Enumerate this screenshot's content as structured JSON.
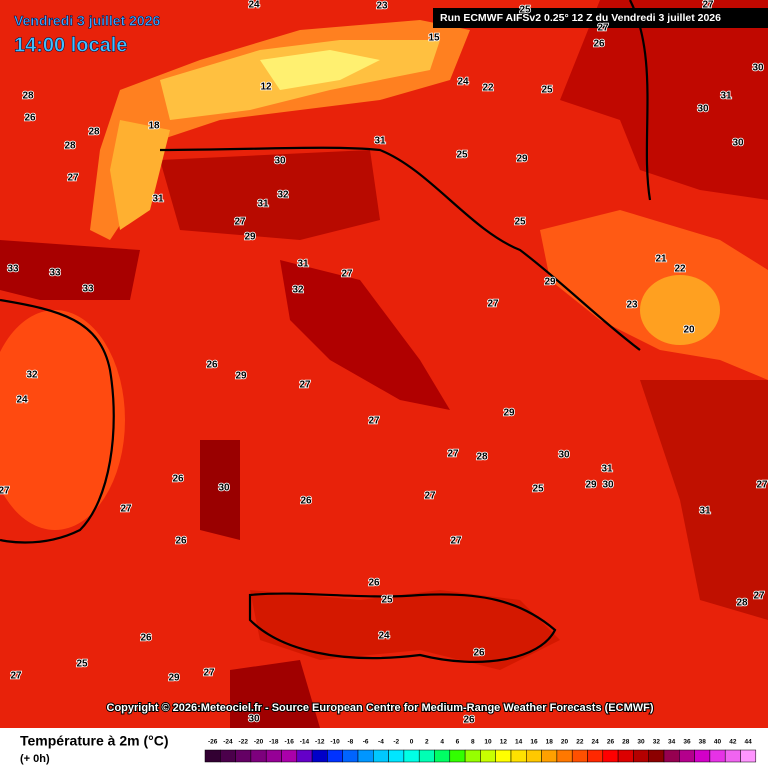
{
  "header": {
    "date": "Vendredi 3 juillet 2026",
    "time": "14:00 locale",
    "run": "Run ECMWF AIFSv2 0.25° 12 Z du Vendredi 3 juillet 2026"
  },
  "copyright": "Copyright © 2026:Meteociel.fr - Source European Centre for Medium-Range Weather Forecasts (ECMWF)",
  "legend": {
    "title": "Température à 2m (°C)",
    "subtitle": "(+ 0h)",
    "ticks": [
      -26,
      -24,
      -22,
      -20,
      -18,
      -16,
      -14,
      -12,
      -10,
      -8,
      -6,
      -4,
      -2,
      0,
      2,
      4,
      6,
      8,
      10,
      12,
      14,
      16,
      18,
      20,
      22,
      24,
      26,
      28,
      30,
      32,
      34,
      36,
      38,
      40,
      42,
      44
    ],
    "colors": [
      "#320032",
      "#4b004b",
      "#640064",
      "#7d007d",
      "#960096",
      "#aa00aa",
      "#6400c8",
      "#0000c8",
      "#0032ff",
      "#0064ff",
      "#0096ff",
      "#00c8ff",
      "#00e6ff",
      "#00ffe6",
      "#00ffb4",
      "#00ff64",
      "#32ff00",
      "#96ff00",
      "#c8ff00",
      "#ffff00",
      "#ffe100",
      "#ffc800",
      "#ffa000",
      "#ff7800",
      "#ff5000",
      "#ff2800",
      "#ff0000",
      "#dc0000",
      "#b40000",
      "#8c0000",
      "#960050",
      "#b4008c",
      "#d200c8",
      "#e632e6",
      "#f064f0",
      "#ff96ff"
    ]
  },
  "map": {
    "labels": [
      28,
      26,
      28,
      28,
      27,
      31,
      30,
      31,
      32,
      31,
      27,
      29,
      31,
      27,
      32,
      33,
      33,
      33,
      27,
      29,
      23,
      21,
      22,
      20,
      31,
      30,
      30,
      30,
      26,
      24,
      22,
      25,
      29,
      25,
      25,
      24,
      27,
      27,
      26,
      26,
      27,
      27,
      25,
      29,
      27,
      28,
      27,
      27,
      29,
      26,
      26,
      26,
      25,
      24,
      26,
      26,
      29,
      25,
      27,
      27,
      28,
      30,
      31,
      29,
      30,
      31,
      27,
      27,
      26,
      30,
      27,
      23,
      24,
      15,
      25,
      27,
      12,
      18,
      32,
      30
    ]
  }
}
